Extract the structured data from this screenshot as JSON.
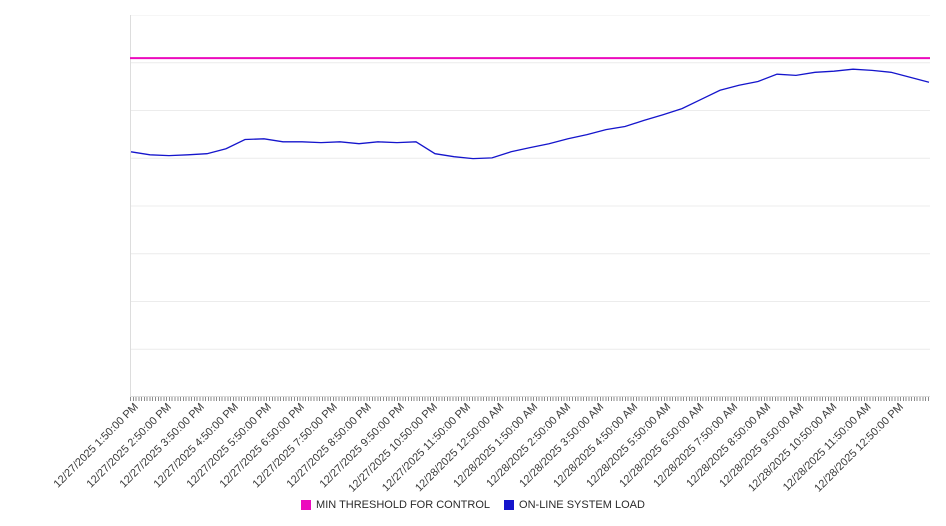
{
  "legend": {
    "items": [
      {
        "label": "MIN THRESHOLD FOR CONTROL",
        "color": "#ec0abd"
      },
      {
        "label": "ON-LINE SYSTEM LOAD",
        "color": "#1515cc"
      }
    ]
  },
  "chart_data": {
    "type": "line",
    "title": "",
    "xlabel": "",
    "ylabel": "",
    "ylim": [
      0,
      100
    ],
    "grid": true,
    "grid_step": 12.5,
    "legend_position": "bottom",
    "x_tick_labels": [
      "12/27/2025 1:50:00 PM",
      "12/27/2025 2:50:00 PM",
      "12/27/2025 3:50:00 PM",
      "12/27/2025 4:50:00 PM",
      "12/27/2025 5:50:00 PM",
      "12/27/2025 6:50:00 PM",
      "12/27/2025 7:50:00 PM",
      "12/27/2025 8:50:00 PM",
      "12/27/2025 9:50:00 PM",
      "12/27/2025 10:50:00 PM",
      "12/27/2025 11:50:00 PM",
      "12/28/2025 12:50:00 AM",
      "12/28/2025 1:50:00 AM",
      "12/28/2025 2:50:00 AM",
      "12/28/2025 3:50:00 AM",
      "12/28/2025 4:50:00 AM",
      "12/28/2025 5:50:00 AM",
      "12/28/2025 6:50:00 AM",
      "12/28/2025 7:50:00 AM",
      "12/28/2025 8:50:00 AM",
      "12/28/2025 9:50:00 AM",
      "12/28/2025 10:50:00 AM",
      "12/28/2025 11:50:00 AM",
      "12/28/2025 12:50:00 PM"
    ],
    "series": [
      {
        "name": "MIN THRESHOLD FOR CONTROL",
        "style": "threshold",
        "color": "#ec0abd",
        "value": 88.7
      },
      {
        "name": "ON-LINE SYSTEM LOAD",
        "style": "line",
        "color": "#1515cc",
        "values": [
          64.2,
          63.4,
          63.2,
          63.4,
          63.7,
          65.0,
          67.4,
          67.6,
          66.8,
          66.8,
          66.6,
          66.8,
          66.3,
          66.8,
          66.6,
          66.8,
          63.7,
          62.9,
          62.4,
          62.6,
          64.2,
          65.3,
          66.3,
          67.6,
          68.7,
          70.0,
          70.8,
          72.4,
          73.9,
          75.5,
          77.9,
          80.3,
          81.6,
          82.6,
          84.5,
          84.2,
          85.0,
          85.3,
          85.8,
          85.5,
          85.0,
          83.7,
          82.4
        ]
      }
    ]
  },
  "colors": {
    "grid": "#ececec",
    "axis": "#bbbbbb",
    "left_axis": "#dddddd",
    "tick": "#8a8a8a",
    "label_text": "#3a3a3a"
  }
}
